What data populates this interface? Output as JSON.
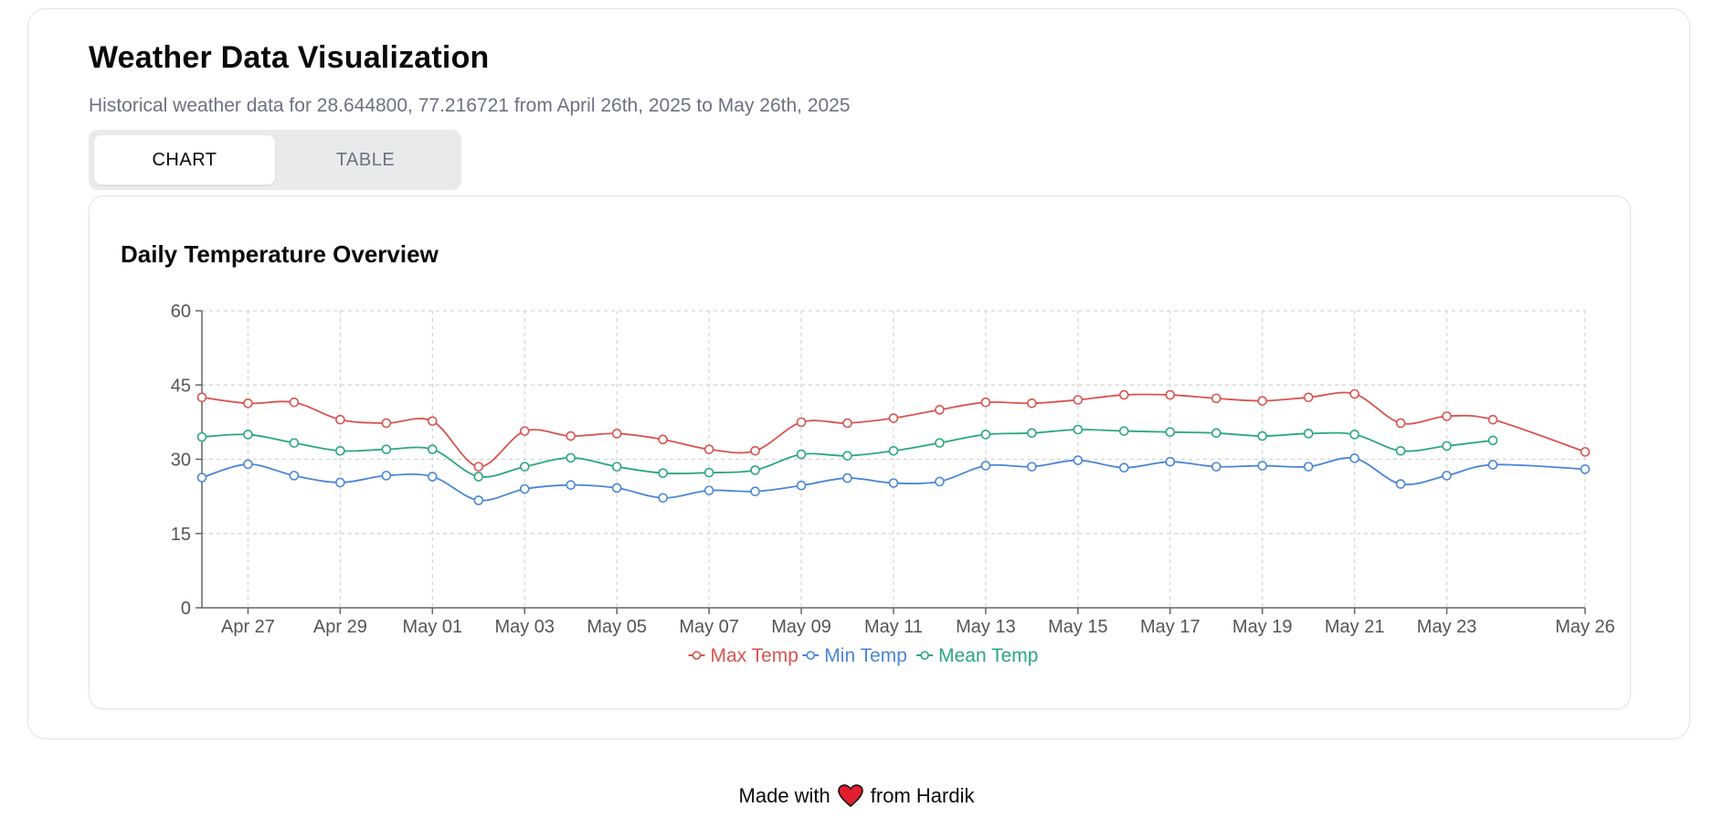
{
  "header": {
    "title": "Weather Data Visualization",
    "subtitle": "Historical weather data for 28.644800, 77.216721 from April 26th, 2025 to May 26th, 2025"
  },
  "tabs": [
    {
      "label": "CHART",
      "active": true
    },
    {
      "label": "TABLE",
      "active": false
    }
  ],
  "chart_card": {
    "title": "Daily Temperature Overview"
  },
  "footer": {
    "prefix": "Made with",
    "suffix": "from Hardik",
    "icon": "heart-icon",
    "heart_color": "#e11d2e"
  },
  "chart_data": {
    "type": "line",
    "title": "Daily Temperature Overview",
    "xlabel": "",
    "ylabel": "",
    "ylim": [
      0,
      60
    ],
    "yticks": [
      0,
      15,
      30,
      45,
      60
    ],
    "x": [
      "Apr 26",
      "Apr 27",
      "Apr 28",
      "Apr 29",
      "Apr 30",
      "May 01",
      "May 02",
      "May 03",
      "May 04",
      "May 05",
      "May 06",
      "May 07",
      "May 08",
      "May 09",
      "May 10",
      "May 11",
      "May 12",
      "May 13",
      "May 14",
      "May 15",
      "May 16",
      "May 17",
      "May 18",
      "May 19",
      "May 20",
      "May 21",
      "May 22",
      "May 23",
      "May 24",
      "May 25",
      "May 26"
    ],
    "xticks": [
      "Apr 27",
      "Apr 29",
      "May 01",
      "May 03",
      "May 05",
      "May 07",
      "May 09",
      "May 11",
      "May 13",
      "May 15",
      "May 17",
      "May 19",
      "May 21",
      "May 23",
      "May 26"
    ],
    "grid": true,
    "legend_position": "bottom",
    "series": [
      {
        "name": "Max Temp",
        "color": "#d9534f",
        "values": [
          42.5,
          41.3,
          41.5,
          38.0,
          37.3,
          37.7,
          28.5,
          35.7,
          34.7,
          35.2,
          34.0,
          32.0,
          31.7,
          37.5,
          37.3,
          38.3,
          40.0,
          41.5,
          41.3,
          42.0,
          43.0,
          43.0,
          42.3,
          41.8,
          42.5,
          43.2,
          37.3,
          38.7,
          38.0,
          null,
          31.5
        ]
      },
      {
        "name": "Min Temp",
        "color": "#4a86d6",
        "values": [
          26.3,
          29.0,
          26.7,
          25.3,
          26.7,
          26.5,
          21.7,
          24.0,
          24.8,
          24.2,
          22.2,
          23.7,
          23.5,
          24.7,
          26.2,
          25.2,
          25.5,
          28.7,
          28.5,
          29.8,
          28.3,
          29.5,
          28.5,
          28.7,
          28.5,
          30.2,
          25.0,
          26.7,
          28.9,
          null,
          28.0
        ]
      },
      {
        "name": "Mean Temp",
        "color": "#2aa87a",
        "values": [
          34.5,
          35.0,
          33.3,
          31.7,
          32.0,
          32.0,
          26.5,
          28.5,
          30.3,
          28.5,
          27.2,
          27.3,
          27.8,
          31.0,
          30.7,
          31.7,
          33.3,
          35.0,
          35.3,
          36.0,
          35.7,
          35.5,
          35.3,
          34.7,
          35.2,
          35.0,
          31.7,
          32.7,
          33.8,
          null,
          null
        ]
      }
    ]
  }
}
